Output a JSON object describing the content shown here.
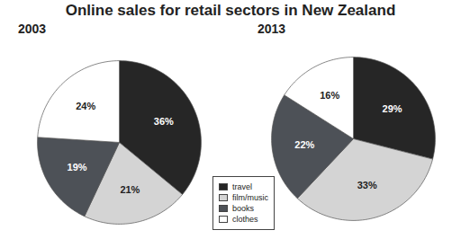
{
  "title": "Online sales for retail sectors in New Zealand",
  "chart_data": [
    {
      "type": "pie",
      "title": "2003",
      "categories": [
        "travel",
        "film/music",
        "books",
        "clothes"
      ],
      "values": [
        36,
        21,
        19,
        24
      ],
      "value_labels": [
        "36%",
        "21%",
        "19%",
        "24%"
      ],
      "colors": [
        "#262626",
        "#d4d4d4",
        "#4d5157",
        "#ffffff"
      ],
      "data_labels": true,
      "legend": "bottom"
    },
    {
      "type": "pie",
      "title": "2013",
      "categories": [
        "travel",
        "film/music",
        "books",
        "clothes"
      ],
      "values": [
        29,
        33,
        22,
        16
      ],
      "value_labels": [
        "29%",
        "33%",
        "22%",
        "16%"
      ],
      "colors": [
        "#262626",
        "#d4d4d4",
        "#4d5157",
        "#ffffff"
      ],
      "data_labels": true,
      "legend": "bottom"
    }
  ]
}
